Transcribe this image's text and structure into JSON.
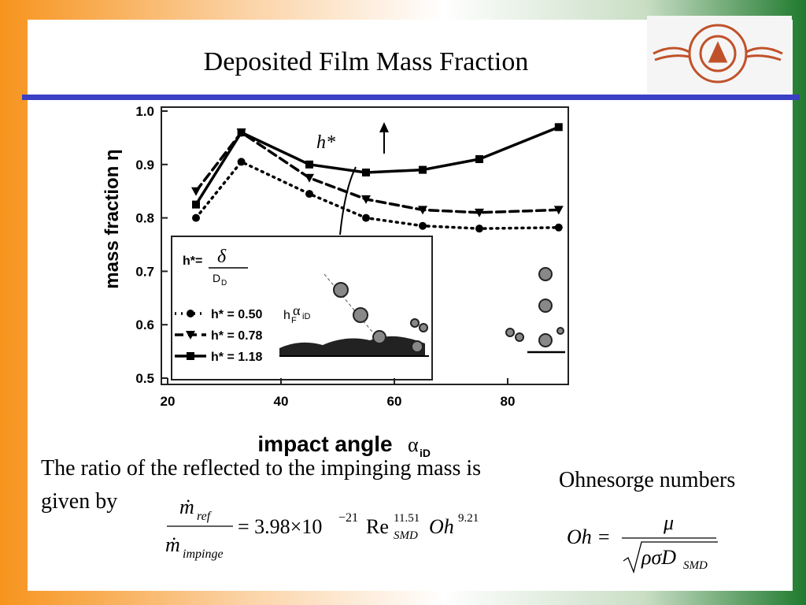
{
  "header": {
    "title": "Deposited Film Mass Fraction"
  },
  "figure": {
    "type": "line",
    "ylabel": "mass fraction  η",
    "xlabel": "impact angle",
    "xlabel_symbol": "α",
    "xlabel_sub": "iD",
    "xlim": [
      20,
      90
    ],
    "ylim": [
      0.5,
      1.0
    ],
    "xticks": [
      20,
      40,
      60,
      80
    ],
    "yticks": [
      0.5,
      0.6,
      0.7,
      0.8,
      0.9,
      {
        "value": 1.0,
        "label": "1.0"
      }
    ],
    "x": [
      25,
      33,
      45,
      55,
      65,
      75,
      89
    ],
    "series": [
      {
        "name": "h* = 0.50",
        "color": "#000000",
        "dash": "dotted",
        "marker": "circle",
        "values": [
          0.8,
          0.905,
          0.845,
          0.8,
          0.785,
          0.78,
          0.782
        ]
      },
      {
        "name": "h* = 0.78",
        "color": "#000000",
        "dash": "dashed",
        "marker": "triangle",
        "values": [
          0.85,
          0.96,
          0.875,
          0.835,
          0.815,
          0.81,
          0.815
        ]
      },
      {
        "name": "h* = 1.18",
        "color": "#000000",
        "dash": "solid",
        "marker": "square",
        "values": [
          0.825,
          0.96,
          0.9,
          0.885,
          0.89,
          0.91,
          0.97
        ]
      }
    ],
    "annotation": "h*",
    "inset": {
      "h": "h*=",
      "delta": "δ",
      "d": "D",
      "d_sub": "D",
      "hf": "h",
      "hf_sub": "F",
      "alpha": "α",
      "alpha_sub": "iD"
    }
  },
  "body": {
    "lines": [
      "The ratio of the reflected to the impinging mass is",
      "given by"
    ]
  },
  "equation": {
    "num": "ṁ",
    "num_sub": "ref",
    "den": "ṁ",
    "den_sub": "impinge",
    "coef": "= 3.98×10",
    "coef_exp": "−21",
    "re": "Re",
    "re_sub": "SMD",
    "re_exp": "11.51",
    "oh": "Oh",
    "oh_exp": "9.21"
  },
  "ohnesorge": {
    "title": "Ohnesorge numbers",
    "lhs": "Oh =",
    "num": "μ",
    "den": "ρσD",
    "den_sub": "SMD"
  }
}
